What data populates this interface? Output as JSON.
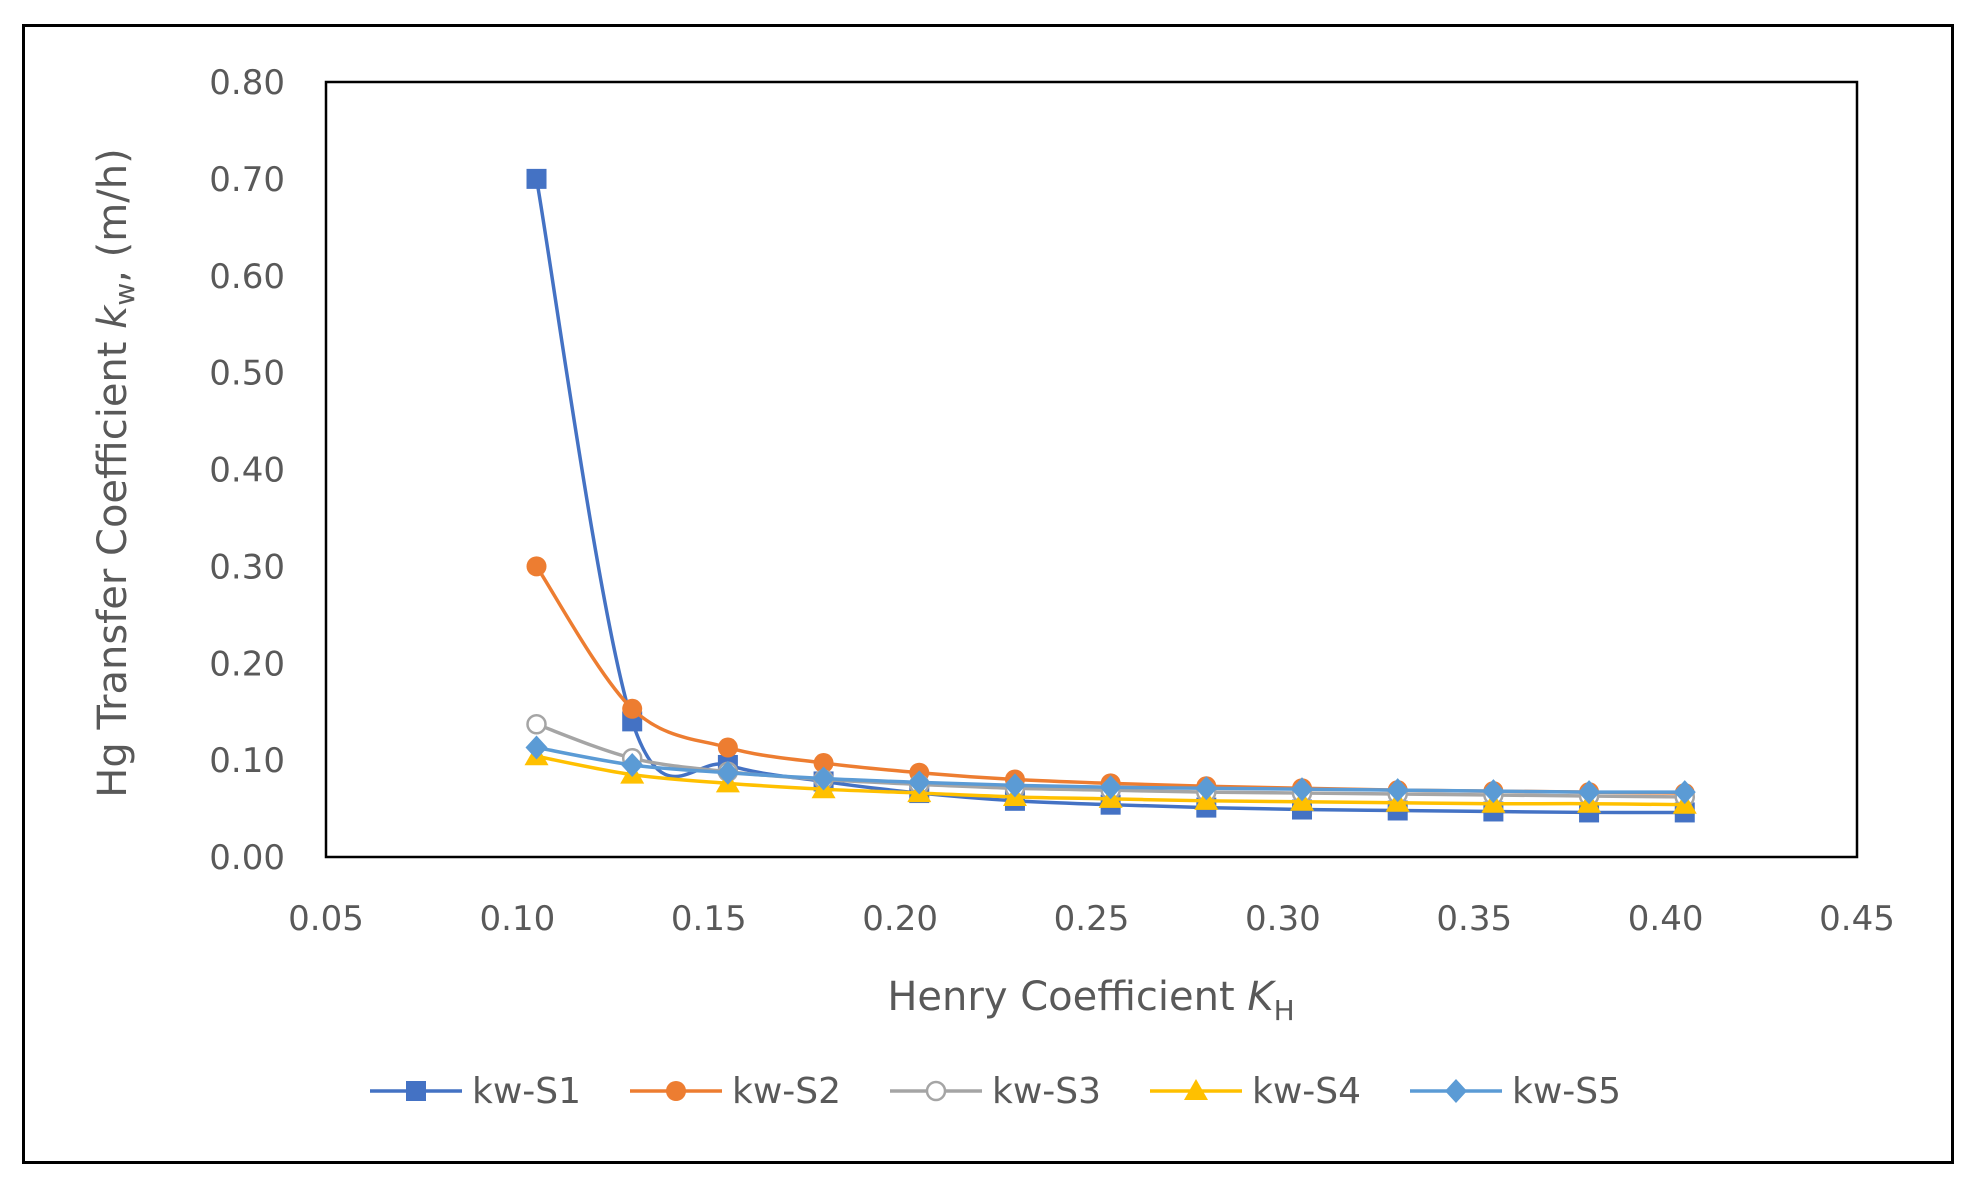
{
  "chart_data": {
    "type": "line",
    "title": "",
    "xlabel": "Henry Coefficient",
    "xlabel_var": "K",
    "xlabel_sub": "H",
    "ylabel": "Hg Transfer Coefficient",
    "ylabel_var": "k",
    "ylabel_sub": "w",
    "ylabel_units": "(m/h)",
    "xlim": [
      0.05,
      0.45
    ],
    "ylim": [
      0.0,
      0.8
    ],
    "xticks": [
      "0.05",
      "0.10",
      "0.15",
      "0.20",
      "0.25",
      "0.30",
      "0.35",
      "0.40",
      "0.45"
    ],
    "yticks": [
      "0.00",
      "0.10",
      "0.20",
      "0.30",
      "0.40",
      "0.50",
      "0.60",
      "0.70",
      "0.80"
    ],
    "grid": false,
    "legend_position": "bottom",
    "x": [
      0.105,
      0.13,
      0.155,
      0.18,
      0.205,
      0.23,
      0.255,
      0.28,
      0.305,
      0.33,
      0.355,
      0.38,
      0.405
    ],
    "series": [
      {
        "name": "kw-S1",
        "color": "#4472C4",
        "marker": "square",
        "values": [
          0.7,
          0.14,
          0.095,
          0.078,
          0.066,
          0.058,
          0.054,
          0.051,
          0.049,
          0.048,
          0.047,
          0.046,
          0.046
        ]
      },
      {
        "name": "kw-S2",
        "color": "#ED7D31",
        "marker": "circle",
        "values": [
          0.3,
          0.153,
          0.113,
          0.097,
          0.087,
          0.08,
          0.076,
          0.073,
          0.071,
          0.069,
          0.068,
          0.067,
          0.066
        ]
      },
      {
        "name": "kw-S3",
        "color": "#A5A5A5",
        "marker": "open-circle",
        "values": [
          0.137,
          0.102,
          0.088,
          0.08,
          0.075,
          0.071,
          0.069,
          0.067,
          0.066,
          0.065,
          0.064,
          0.063,
          0.062
        ]
      },
      {
        "name": "kw-S4",
        "color": "#FFC000",
        "marker": "triangle",
        "values": [
          0.104,
          0.085,
          0.076,
          0.07,
          0.066,
          0.062,
          0.06,
          0.058,
          0.057,
          0.056,
          0.055,
          0.055,
          0.054
        ]
      },
      {
        "name": "kw-S5",
        "color": "#5B9BD5",
        "marker": "diamond",
        "values": [
          0.113,
          0.095,
          0.087,
          0.081,
          0.077,
          0.074,
          0.072,
          0.071,
          0.07,
          0.069,
          0.068,
          0.067,
          0.067
        ]
      }
    ]
  }
}
